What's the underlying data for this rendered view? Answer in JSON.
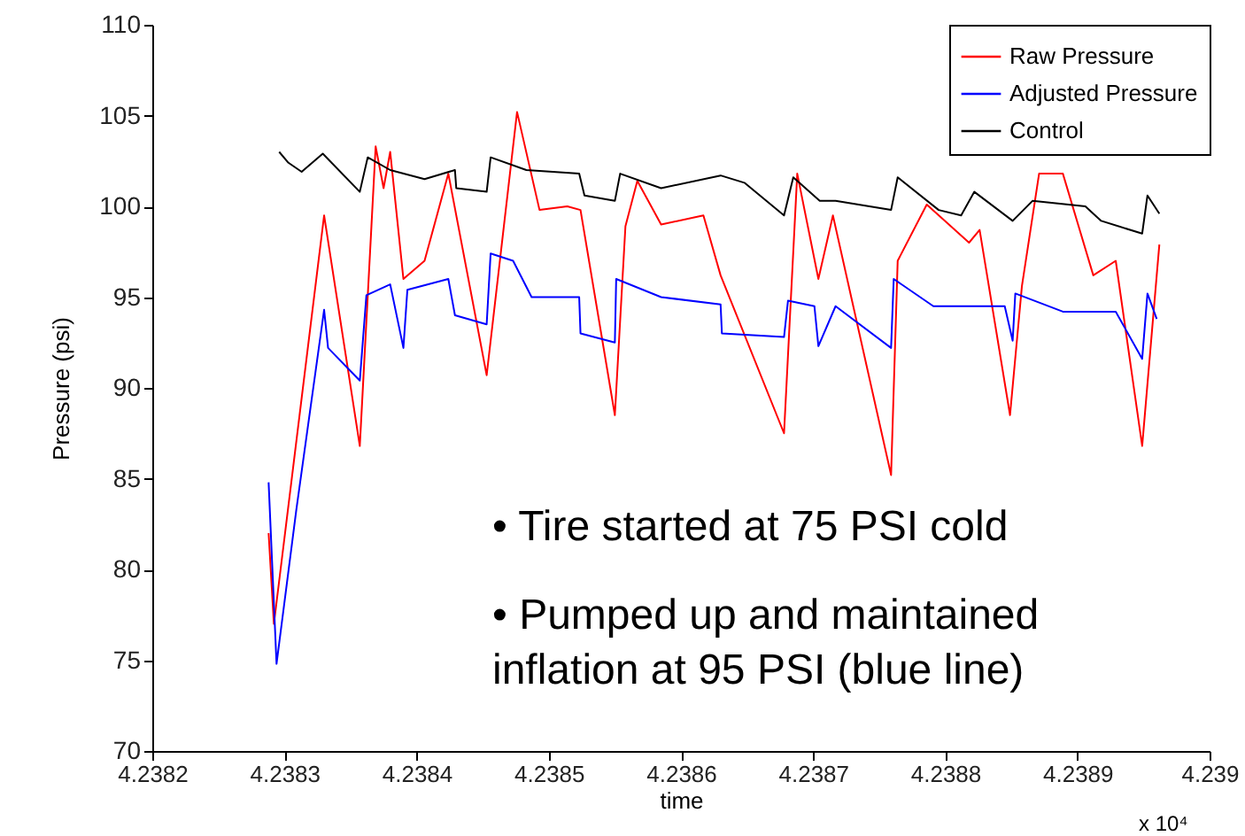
{
  "chart_data": {
    "type": "line",
    "xlabel": "time",
    "ylabel": "Pressure (psi)",
    "xlim": [
      4.2382,
      4.239
    ],
    "xticks": [
      4.2382,
      4.2383,
      4.2384,
      4.2385,
      4.2386,
      4.2387,
      4.2388,
      4.2389,
      4.239
    ],
    "ylim": [
      70,
      110
    ],
    "yticks": [
      70,
      75,
      80,
      85,
      90,
      95,
      100,
      105,
      110
    ],
    "grid": false,
    "legend": "top right",
    "line_style": "solid",
    "marker": "none",
    "annotations": [
      "x 10⁴",
      "• Tire started at 75 PSI cold",
      "• Pumped up and maintained\ninflation at 95 PSI (blue line)"
    ],
    "series": [
      {
        "name": "Raw Pressure",
        "color": "#ff0000",
        "x": [
          4.238288,
          4.238292,
          4.23833,
          4.238357,
          4.238369,
          4.238375,
          4.23838,
          4.23839,
          4.238406,
          4.238424,
          4.238453,
          4.238476,
          4.238493,
          4.238514,
          4.238524,
          4.23855,
          4.238558,
          4.238567,
          4.238585,
          4.238617,
          4.23863,
          4.238678,
          4.238688,
          4.238704,
          4.238715,
          4.238759,
          4.238764,
          4.238786,
          4.238818,
          4.238826,
          4.238849,
          4.238858,
          4.238871,
          4.238889,
          4.238912,
          4.238929,
          4.238949,
          4.23896,
          4.238962
        ],
        "values": [
          82,
          77,
          99.5,
          86.8,
          103.3,
          101,
          103,
          96,
          97,
          101.8,
          90.7,
          105.2,
          99.8,
          100,
          99.8,
          88.5,
          98.9,
          101.4,
          99,
          99.5,
          96.2,
          87.5,
          101.8,
          96,
          99.5,
          85.2,
          97,
          100.1,
          98,
          98.7,
          88.5,
          95.6,
          101.8,
          101.8,
          96.2,
          97,
          86.8,
          96.2,
          97.9
        ]
      },
      {
        "name": "Adjusted Pressure",
        "color": "#0000ff",
        "x": [
          4.238288,
          4.238294,
          4.238309,
          4.23833,
          4.238333,
          4.238357,
          4.238362,
          4.23838,
          4.23839,
          4.238393,
          4.238424,
          4.238429,
          4.238453,
          4.238456,
          4.238473,
          4.238487,
          4.238523,
          4.238524,
          4.23855,
          4.238551,
          4.238585,
          4.23863,
          4.238631,
          4.238678,
          4.238681,
          4.238701,
          4.238704,
          4.238717,
          4.238759,
          4.238761,
          4.238791,
          4.238808,
          4.238845,
          4.238851,
          4.238853,
          4.238889,
          4.238929,
          4.238949,
          4.238953,
          4.23896
        ],
        "values": [
          84.8,
          74.8,
          83.3,
          94.3,
          92.2,
          90.4,
          95.1,
          95.7,
          92.2,
          95.4,
          96,
          94,
          93.5,
          97.4,
          97,
          95,
          95,
          93,
          92.5,
          96,
          95,
          94.6,
          93,
          92.8,
          94.8,
          94.5,
          92.3,
          94.5,
          92.2,
          96,
          94.5,
          94.5,
          94.5,
          92.6,
          95.2,
          94.2,
          94.2,
          91.6,
          95.2,
          93.8
        ]
      },
      {
        "name": "Control",
        "color": "#000000",
        "x": [
          4.238296,
          4.238303,
          4.238313,
          4.238329,
          4.238357,
          4.238363,
          4.23838,
          4.238406,
          4.238429,
          4.23843,
          4.238453,
          4.238456,
          4.238483,
          4.238523,
          4.238527,
          4.23855,
          4.238554,
          4.238585,
          4.23863,
          4.238648,
          4.238678,
          4.238685,
          4.238705,
          4.238717,
          4.238759,
          4.238764,
          4.238795,
          4.238812,
          4.238822,
          4.238851,
          4.238866,
          4.238906,
          4.238918,
          4.238949,
          4.238953,
          4.238962
        ],
        "values": [
          103,
          102.4,
          101.9,
          102.9,
          100.8,
          102.7,
          102,
          101.5,
          102,
          101,
          100.8,
          102.7,
          102,
          101.8,
          100.6,
          100.3,
          101.8,
          101,
          101.7,
          101.3,
          99.5,
          101.6,
          100.3,
          100.3,
          99.8,
          101.6,
          99.8,
          99.5,
          100.8,
          99.2,
          100.3,
          100,
          99.2,
          98.5,
          100.6,
          99.6
        ]
      }
    ]
  }
}
